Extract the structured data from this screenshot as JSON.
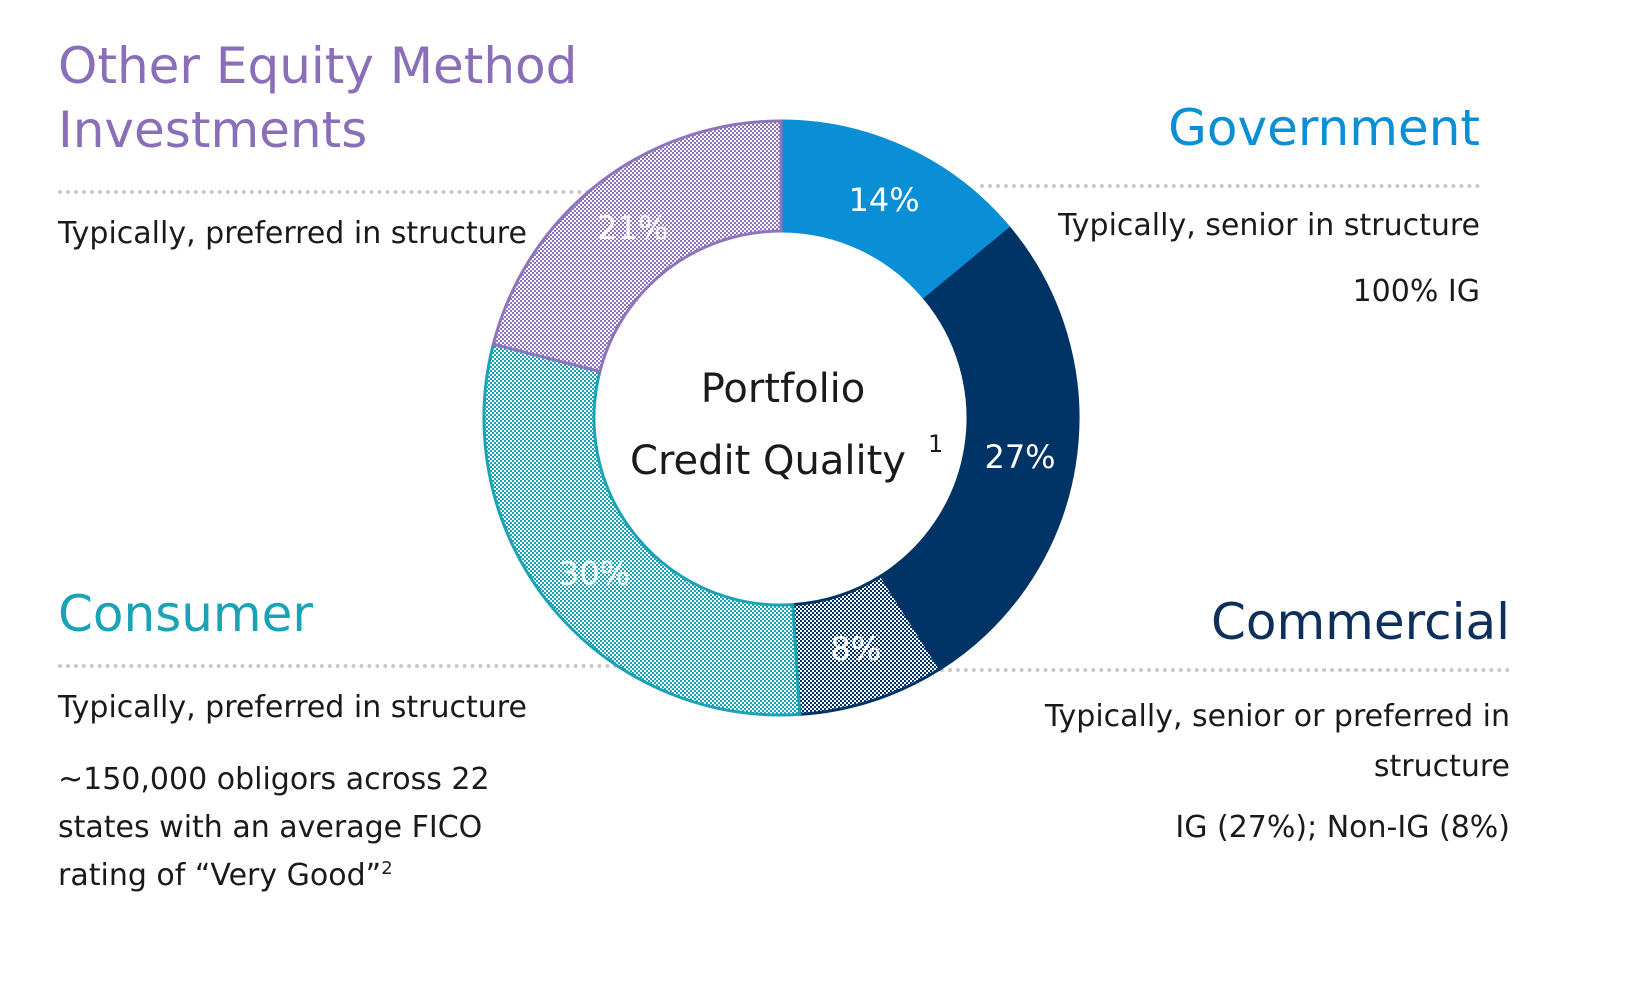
{
  "chart_data": {
    "type": "pie",
    "variant": "donut",
    "title": "Portfolio Credit Quality",
    "title_line1": "Portfolio",
    "title_line2": "Credit Quality",
    "title_footnote": "1",
    "slices": [
      {
        "name": "Government",
        "value": 14,
        "label": "14%",
        "color": "#0a8fd6",
        "pattern": false
      },
      {
        "name": "Commercial IG",
        "value": 27,
        "label": "27%",
        "color": "#003366",
        "pattern": false
      },
      {
        "name": "Commercial Non-IG",
        "value": 8,
        "label": "8%",
        "color": "#003366",
        "pattern": true
      },
      {
        "name": "Consumer",
        "value": 30,
        "label": "30%",
        "color": "#1aa3b5",
        "pattern": true
      },
      {
        "name": "Other Equity Method Investments",
        "value": 21,
        "label": "21%",
        "color": "#8f73bd",
        "pattern": true
      }
    ]
  },
  "sections": {
    "other_equity": {
      "title_line1": "Other Equity Method",
      "title_line2": "Investments",
      "color": "#8a6fb8",
      "desc": "Typically, preferred in structure"
    },
    "government": {
      "title": "Government",
      "color": "#0a8fd6",
      "desc": "Typically, senior in structure",
      "detail": "100% IG"
    },
    "consumer": {
      "title": "Consumer",
      "color": "#1aa3b5",
      "desc": "Typically, preferred in structure",
      "detail_line1": "~150,000 obligors across 22",
      "detail_line2": "states with an average FICO",
      "detail_line3": "rating of “Very Good”",
      "detail_footnote": "2"
    },
    "commercial": {
      "title": "Commercial",
      "color": "#0d2f5c",
      "desc_line1": "Typically, senior or preferred in",
      "desc_line2": "structure",
      "detail": "IG (27%); Non-IG (8%)"
    }
  }
}
